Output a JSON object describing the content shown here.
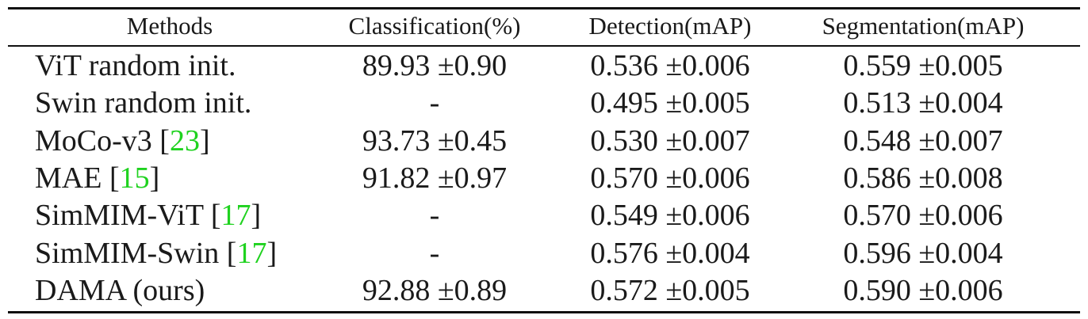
{
  "table": {
    "headers": [
      "Methods",
      "Classification(%)",
      "Detection(mAP)",
      "Segmentation(mAP)"
    ],
    "rows": [
      {
        "method": "ViT random init.",
        "cite": "",
        "classification": "89.93 ±0.90",
        "detection": "0.536 ±0.006",
        "segmentation": "0.559 ±0.005"
      },
      {
        "method": "Swin random init.",
        "cite": "",
        "classification": "-",
        "detection": "0.495 ±0.005",
        "segmentation": "0.513 ±0.004"
      },
      {
        "method": "MoCo-v3 ",
        "cite": "23",
        "classification": "93.73 ±0.45",
        "detection": "0.530 ±0.007",
        "segmentation": "0.548 ±0.007"
      },
      {
        "method": "MAE ",
        "cite": "15",
        "classification": "91.82 ±0.97",
        "detection": "0.570 ±0.006",
        "segmentation": "0.586 ±0.008"
      },
      {
        "method": "SimMIM-ViT ",
        "cite": "17",
        "classification": "-",
        "detection": "0.549 ±0.006",
        "segmentation": "0.570 ±0.006"
      },
      {
        "method": "SimMIM-Swin ",
        "cite": "17",
        "classification": "-",
        "detection": "0.576 ±0.004",
        "segmentation": "0.596 ±0.004"
      },
      {
        "method": "DAMA (ours)",
        "cite": "",
        "classification": "92.88 ±0.89",
        "detection": "0.572 ±0.005",
        "segmentation": "0.590 ±0.006"
      }
    ]
  },
  "colors": {
    "citation": "#1fd21f",
    "text": "#1a1a1a",
    "rule": "#111111"
  }
}
